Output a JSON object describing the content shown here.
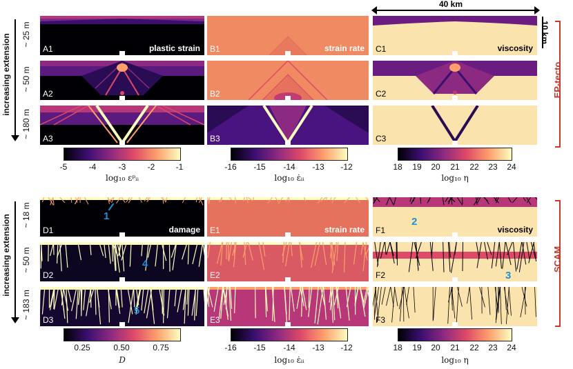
{
  "scale": {
    "width_label": "40 km",
    "height_label": "10 km"
  },
  "groups": {
    "top": "EP-tecto",
    "bottom": "SCAM"
  },
  "side": {
    "top": "increasing extension",
    "bottom": "increasing extension"
  },
  "rows": {
    "r1": "~ 25 m",
    "r2": "~ 50 m",
    "r3": "~ 180 m",
    "r4": "~ 18 m",
    "r5": "~ 50 m",
    "r6": "~ 183 m"
  },
  "panels": {
    "A1": {
      "label": "A1",
      "title": "plastic strain"
    },
    "A2": {
      "label": "A2"
    },
    "A3": {
      "label": "A3"
    },
    "B1": {
      "label": "B1",
      "title": "strain rate"
    },
    "B2": {
      "label": "B2"
    },
    "B3": {
      "label": "B3"
    },
    "C1": {
      "label": "C1",
      "title": "viscosity"
    },
    "C2": {
      "label": "C2"
    },
    "C3": {
      "label": "C3"
    },
    "D1": {
      "label": "D1",
      "title": "damage"
    },
    "D2": {
      "label": "D2"
    },
    "D3": {
      "label": "D3"
    },
    "E1": {
      "label": "E1",
      "title": "strain rate"
    },
    "E2": {
      "label": "E2"
    },
    "E3": {
      "label": "E3"
    },
    "F1": {
      "label": "F1",
      "title": "viscosity"
    },
    "F2": {
      "label": "F2"
    },
    "F3": {
      "label": "F3"
    }
  },
  "annotations": {
    "a1": "1",
    "a2": "2",
    "a3": "3",
    "a4": "4",
    "a5": "5"
  },
  "colorbars": {
    "plastic": {
      "ticks": [
        "-5",
        "-4",
        "-3",
        "-2",
        "-1"
      ],
      "label": "log₁₀ εᵖᵢᵢ"
    },
    "srate_top": {
      "ticks": [
        "-16",
        "-15",
        "-14",
        "-13",
        "-12"
      ],
      "label": "log₁₀ ε̇ᵢᵢ"
    },
    "visc_top": {
      "ticks": [
        "18",
        "19",
        "20",
        "21",
        "22",
        "23",
        "24"
      ],
      "label": "log₁₀ η"
    },
    "damage": {
      "ticks": [
        "0.25",
        "0.50",
        "0.75"
      ],
      "label": "D"
    },
    "srate_bot": {
      "ticks": [
        "-16",
        "-15",
        "-14",
        "-13",
        "-12"
      ],
      "label": "log₁₀ ε̇ᵢᵢ"
    },
    "visc_bot": {
      "ticks": [
        "18",
        "19",
        "20",
        "21",
        "22",
        "23",
        "24"
      ],
      "label": "log₁₀ η"
    }
  },
  "colors": {
    "magma_dark": "#000004",
    "magma_purple": "#51127c",
    "magma_mid": "#b73779",
    "magma_orange": "#fc8961",
    "magma_light": "#fcfdbf",
    "group_red": "#c0392b",
    "annotation_blue": "#1e90d6"
  }
}
